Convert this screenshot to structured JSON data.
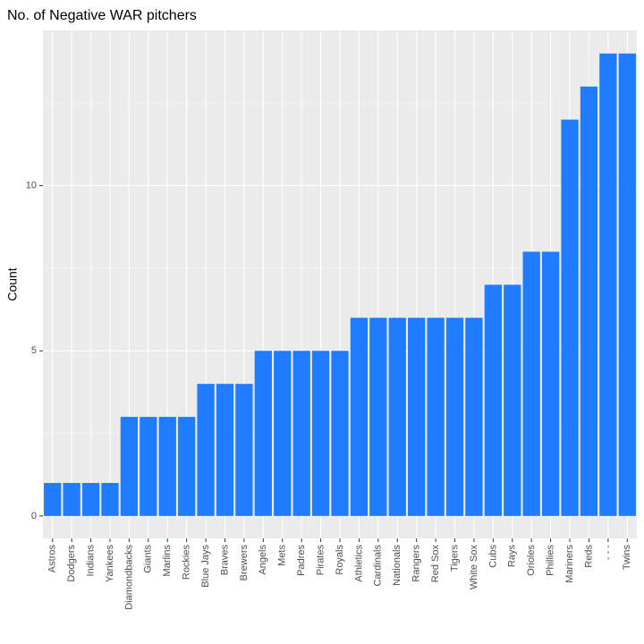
{
  "chart_data": {
    "type": "bar",
    "title": "No. of Negative WAR pitchers",
    "y_label": "Count",
    "categories": [
      "Astros",
      "Dodgers",
      "Indians",
      "Yankees",
      "Diamondbacks",
      "Giants",
      "Marlins",
      "Rockies",
      "Blue Jays",
      "Braves",
      "Brewers",
      "Angels",
      "Mets",
      "Padres",
      "Pirates",
      "Royals",
      "Athletics",
      "Cardinals",
      "Nationals",
      "Rangers",
      "Red Sox",
      "Tigers",
      "White Sox",
      "Cubs",
      "Rays",
      "Orioles",
      "Phillies",
      "Mariners",
      "Reds",
      "- - -",
      "Twins"
    ],
    "values": [
      1,
      1,
      1,
      1,
      3,
      3,
      3,
      3,
      4,
      4,
      4,
      5,
      5,
      5,
      5,
      5,
      6,
      6,
      6,
      6,
      6,
      6,
      6,
      7,
      7,
      8,
      8,
      12,
      13,
      14,
      14
    ],
    "color": "#1f7bff",
    "ylim": [
      -0.68,
      14.7
    ],
    "yticks": [
      0,
      5,
      10
    ],
    "grid": true
  }
}
